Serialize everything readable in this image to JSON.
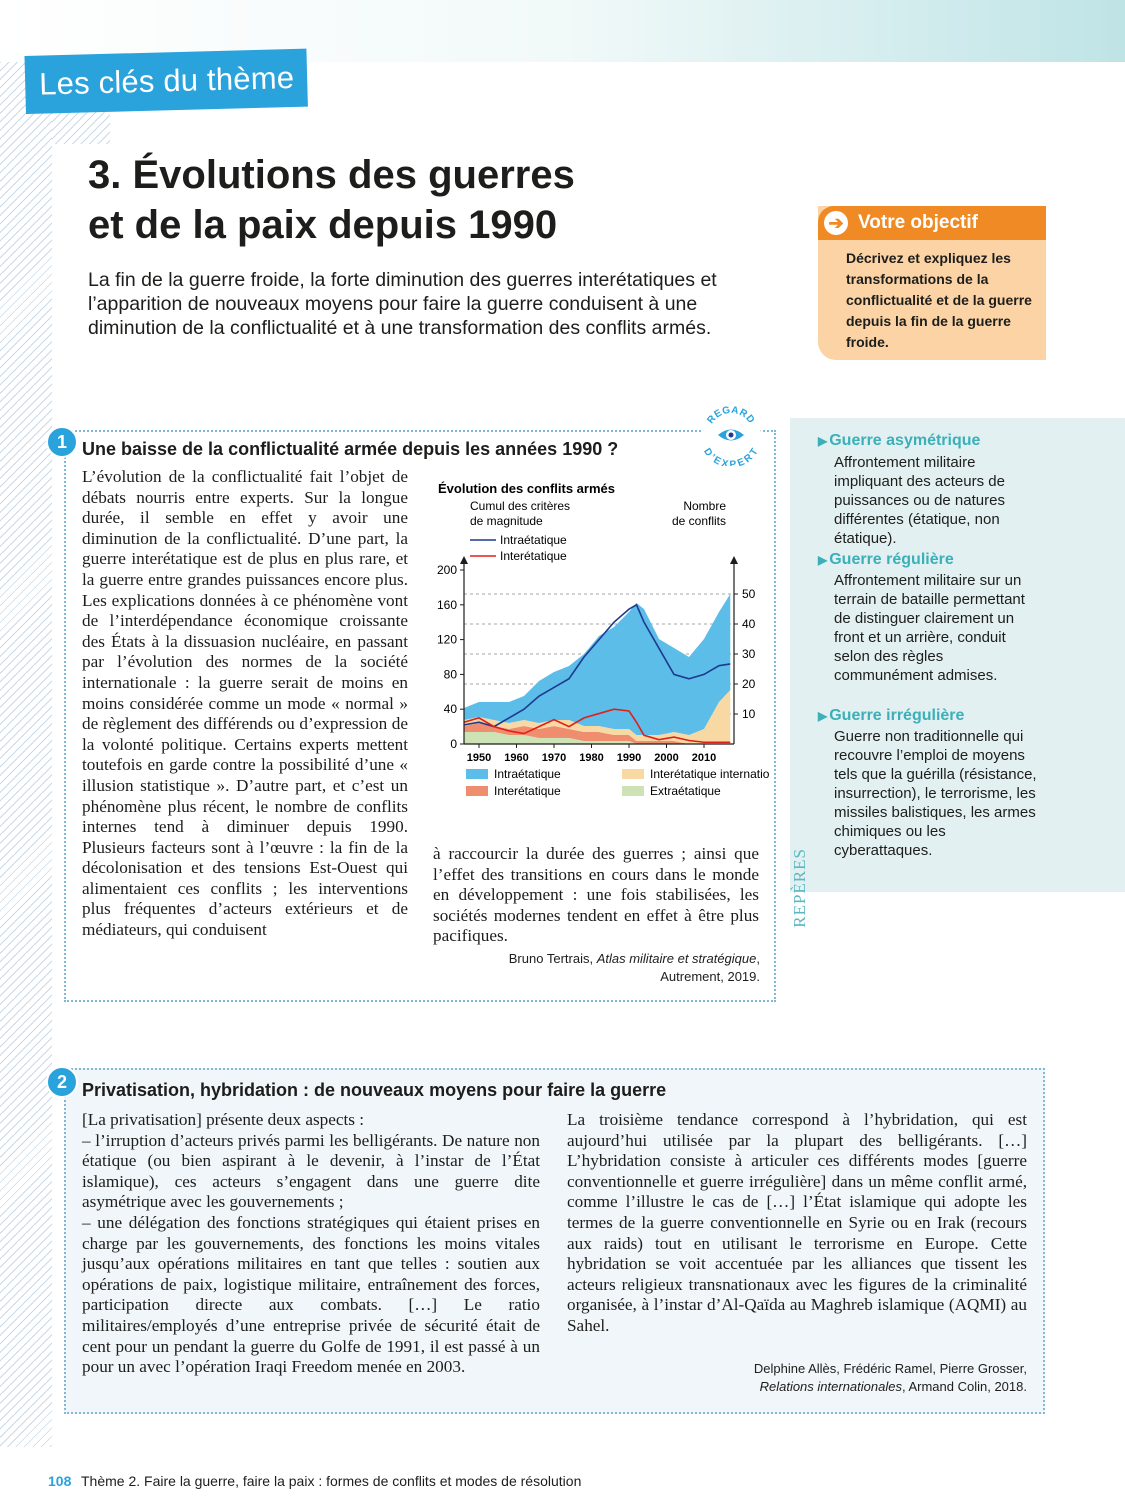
{
  "header": {
    "theme_tab": "Les clés du thème"
  },
  "title": {
    "line1": "3. Évolutions des guerres",
    "line2": "et de la paix depuis 1990"
  },
  "intro": "La fin de la guerre froide, la forte diminution des guerres interétatiques et l’apparition de nouveaux moyens pour faire la guerre conduisent à une diminution de la conflictualité et à une transformation des conflits armés.",
  "objective": {
    "heading": "Votre objectif",
    "text": "Décrivez et expliquez les transformations de la conflictualité et de la guerre depuis la fin de la guerre froide."
  },
  "doc1": {
    "number": "1",
    "title": "Une baisse de la conflictualité armée depuis les années 1990 ?",
    "badge": {
      "line1": "REGARD",
      "line2": "D’EXPERT"
    },
    "col1": "L’évolution de la conflictualité fait l’objet de débats nourris entre experts. Sur la longue durée, il semble en effet y avoir une diminution de la conflictualité. D’une part, la guerre interétatique est de plus en plus rare, et la guerre entre grandes puissances encore plus. Les explications données à ce phénomène vont de l’interdépendance économique croissante des États à la dissuasion nucléaire, en passant par l’évolution des normes de la société internationale : la guerre serait de moins en moins considérée comme un mode « normal » de règlement des différends ou d’expression de la volonté politique. Certains experts mettent toutefois en garde contre la possibilité d’une « illusion statistique ». D’autre part, et c’est un phénomène plus récent, le nombre de conflits internes tend à diminuer depuis 1990. Plusieurs facteurs sont à l’œuvre : la fin de la décolonisation et des tensions Est-Ouest qui alimentaient ces conflits ; les interventions plus fréquentes d’acteurs extérieurs et de médiateurs, qui conduisent",
    "col2": "à raccourcir la durée des guerres ; ainsi que l’effet des transitions en cours dans le monde en développement : une fois stabilisées, les sociétés modernes tendent en effet à être plus pacifiques.",
    "source_author": "Bruno Tertrais,",
    "source_work": "Atlas militaire et stratégique",
    "source_publisher": "Autrement, 2019."
  },
  "chart_data": {
    "type": "area",
    "title": "Évolution des conflits armés",
    "left_axis_label_line1": "Cumul des critères",
    "left_axis_label_line2": "de magnitude",
    "right_axis_label_line1": "Nombre",
    "right_axis_label_line2": "de conflits",
    "x_ticks": [
      "1950",
      "1960",
      "1970",
      "1980",
      "1990",
      "2000",
      "2010"
    ],
    "left_ticks": [
      "0",
      "40",
      "80",
      "120",
      "160",
      "200"
    ],
    "right_ticks": [
      "10",
      "20",
      "30",
      "40",
      "50"
    ],
    "xlim": [
      1946,
      2018
    ],
    "left_ylim": [
      0,
      200
    ],
    "right_ylim": [
      0,
      58
    ],
    "line_legend": [
      {
        "name": "Intraétatique",
        "color": "#1f3a8f"
      },
      {
        "name": "Interétatique",
        "color": "#e0201a"
      }
    ],
    "area_legend": [
      {
        "name": "Intraétatique",
        "color": "#5bbde8"
      },
      {
        "name": "Interétatique internationalisé",
        "color": "#f9d9a3"
      },
      {
        "name": "Interétatique",
        "color": "#ef8d6f"
      },
      {
        "name": "Extraétatique",
        "color": "#cde3b6"
      }
    ],
    "years": [
      1946,
      1950,
      1954,
      1958,
      1962,
      1966,
      1970,
      1974,
      1978,
      1982,
      1986,
      1990,
      1992,
      1994,
      1998,
      2002,
      2006,
      2010,
      2014,
      2017
    ],
    "areas_right_axis": {
      "Extraétatique": [
        4,
        4,
        4,
        3,
        3,
        2,
        2,
        2,
        1,
        1,
        1,
        1,
        0,
        0,
        0,
        0,
        0,
        0,
        0,
        0
      ],
      "Interétatique": [
        2,
        3,
        2,
        2,
        3,
        3,
        4,
        3,
        3,
        3,
        2,
        2,
        1,
        1,
        1,
        1,
        0,
        0,
        0,
        0
      ],
      "Interétatique internationalisé": [
        2,
        2,
        2,
        2,
        2,
        2,
        2,
        3,
        2,
        2,
        2,
        2,
        2,
        2,
        2,
        3,
        3,
        5,
        14,
        18
      ],
      "Intraétatique": [
        4,
        5,
        6,
        7,
        8,
        14,
        16,
        18,
        24,
        30,
        34,
        39,
        44,
        42,
        32,
        28,
        26,
        30,
        30,
        32
      ]
    },
    "lines_left_axis": {
      "Intraétatique": [
        22,
        25,
        20,
        30,
        40,
        55,
        65,
        75,
        100,
        120,
        140,
        155,
        160,
        140,
        110,
        80,
        75,
        80,
        90,
        92
      ],
      "Interétatique": [
        25,
        30,
        20,
        15,
        12,
        20,
        28,
        20,
        30,
        35,
        40,
        38,
        25,
        10,
        5,
        8,
        4,
        2,
        2,
        2
      ]
    }
  },
  "reperes": {
    "label": "REPÈRES",
    "terms": [
      {
        "term": "Guerre asymétrique",
        "def": "Affrontement militaire impliquant des acteurs de puissances ou de natures différentes (étatique, non étatique)."
      },
      {
        "term": "Guerre régulière",
        "def": "Affrontement militaire sur un terrain de bataille permettant de distinguer clairement un front et un arrière, conduit selon des règles communément admises."
      },
      {
        "term": "Guerre irrégulière",
        "def": "Guerre non traditionnelle qui recouvre l’emploi de moyens tels que la guérilla (résistance, insurrection), le terrorisme, les missiles balistiques, les armes chimiques ou les cyberattaques."
      }
    ]
  },
  "doc2": {
    "number": "2",
    "title": "Privatisation, hybridation : de nouveaux moyens pour faire la guerre",
    "col1_p1": "[La privatisation] présente deux aspects :",
    "col1_p2": "– l’irruption d’acteurs privés parmi les belligérants. De nature non étatique (ou bien aspirant à le devenir, à l’instar de l’État islamique), ces acteurs s’engagent dans une guerre dite asymétrique avec les gouvernements ;",
    "col1_p3": "– une délégation des fonctions stratégiques qui étaient prises en charge par les gouvernements, des fonctions les moins vitales jusqu’aux opérations militaires en tant que telles : soutien aux opérations de paix, logistique militaire, entraînement des forces, participation directe aux combats. […] Le ratio militaires/employés d’une entreprise privée de sécurité était de cent pour un pendant la guerre du Golfe de 1991, il est passé à un pour un avec l’opération Iraqi Freedom menée en 2003.",
    "col2": "La troisième tendance correspond à l’hybridation, qui est aujourd’hui utilisée par la plupart des belligérants. […] L’hybridation consiste à articuler ces différents modes [guerre conventionnelle et guerre irrégulière] dans un même conflit armé, comme l’illustre le cas de […] l’État islamique qui adopte les termes de la guerre conventionnelle en Syrie ou en Irak (recours aux raids) tout en utilisant le terrorisme en Europe. Cette hybridation se voit accentuée par les alliances que tissent les acteurs religieux transnationaux avec les figures de la criminalité organisée, à l’instar d’Al-Qaïda au Maghreb islamique (AQMI) au Sahel.",
    "source_authors": "Delphine Allès, Frédéric Ramel, Pierre Grosser,",
    "source_work": "Relations internationales",
    "source_publisher": ", Armand Colin, 2018."
  },
  "footer": {
    "page": "108",
    "text": "Thème 2. Faire la guerre, faire la paix : formes de conflits et modes de résolution"
  }
}
